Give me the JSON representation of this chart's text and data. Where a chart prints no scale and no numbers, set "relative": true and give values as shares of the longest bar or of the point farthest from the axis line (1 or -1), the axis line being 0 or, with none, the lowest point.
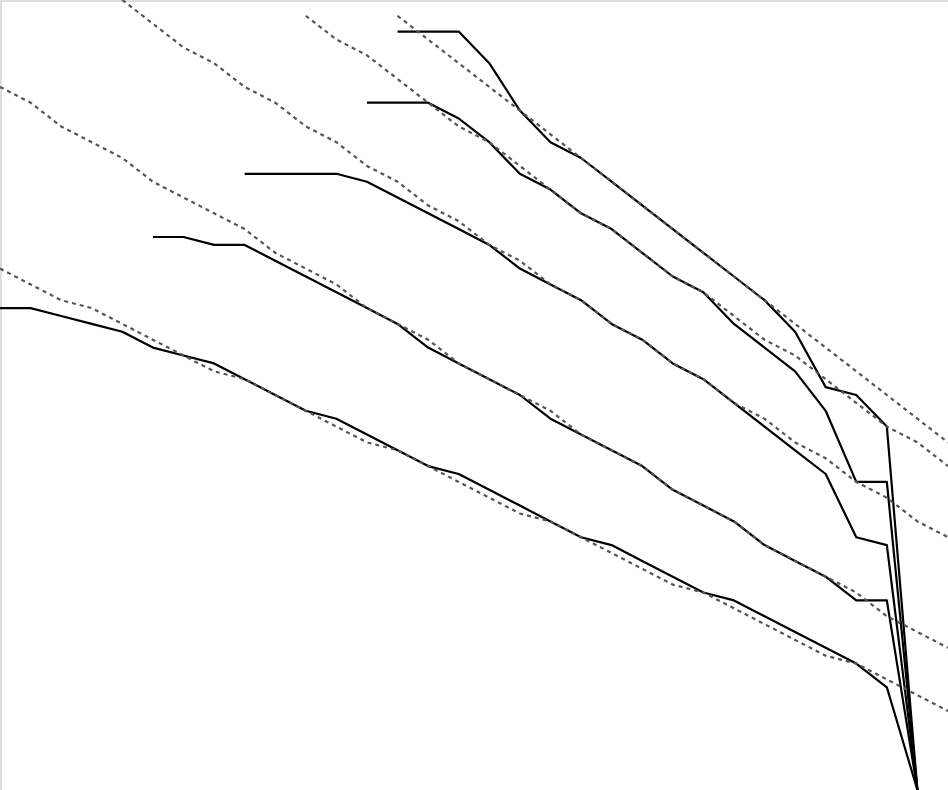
{
  "chart_data": {
    "type": "line",
    "relative": true,
    "categories": [
      null,
      null,
      null,
      null,
      null,
      null,
      null,
      null,
      null,
      null,
      null,
      null,
      null,
      null,
      null,
      null,
      null,
      null,
      null,
      null,
      null,
      null,
      null,
      null,
      null,
      null,
      null,
      null,
      null,
      null,
      null,
      null
    ],
    "series": [
      {
        "color": "#000000",
        "line_style": "solid",
        "values": [
          0.61,
          0.61,
          0.6,
          0.59,
          0.58,
          0.56,
          0.55,
          0.54,
          0.52,
          0.5,
          0.48,
          0.47,
          0.45,
          0.43,
          0.41,
          0.4,
          0.38,
          0.36,
          0.34,
          0.32,
          0.31,
          0.29,
          0.27,
          0.25,
          0.24,
          0.22,
          0.2,
          0.18,
          0.16,
          0.13,
          0,
          null
        ]
      },
      {
        "color": "#000000",
        "line_style": "solid",
        "values": [
          null,
          null,
          null,
          null,
          null,
          0.7,
          0.7,
          0.69,
          0.69,
          0.67,
          0.65,
          0.63,
          0.61,
          0.59,
          0.56,
          0.54,
          0.52,
          0.5,
          0.47,
          0.45,
          0.43,
          0.41,
          0.38,
          0.36,
          0.34,
          0.31,
          0.29,
          0.27,
          0.24,
          0.24,
          0,
          null
        ]
      },
      {
        "color": "#000000",
        "line_style": "solid",
        "values": [
          null,
          null,
          null,
          null,
          null,
          null,
          null,
          null,
          0.78,
          0.78,
          0.78,
          0.78,
          0.77,
          0.75,
          0.73,
          0.71,
          0.69,
          0.66,
          0.64,
          0.62,
          0.59,
          0.57,
          0.54,
          0.52,
          0.49,
          0.46,
          0.43,
          0.4,
          0.32,
          0.31,
          0,
          null
        ]
      },
      {
        "color": "#000000",
        "line_style": "solid",
        "values": [
          null,
          null,
          null,
          null,
          null,
          null,
          null,
          null,
          null,
          null,
          null,
          null,
          0.87,
          0.87,
          0.87,
          0.85,
          0.82,
          0.78,
          0.76,
          0.73,
          0.71,
          0.68,
          0.65,
          0.63,
          0.59,
          0.56,
          0.53,
          0.48,
          0.39,
          0.39,
          0,
          null
        ]
      },
      {
        "color": "#000000",
        "line_style": "solid",
        "values": [
          null,
          null,
          null,
          null,
          null,
          null,
          null,
          null,
          null,
          null,
          null,
          null,
          null,
          0.96,
          0.96,
          0.96,
          0.92,
          0.86,
          0.82,
          0.8,
          0.77,
          0.74,
          0.71,
          0.68,
          0.65,
          0.62,
          0.58,
          0.51,
          0.5,
          0.46,
          0,
          null
        ]
      },
      {
        "color": "#555555",
        "line_style": "dotted",
        "values": [
          0.66,
          0.64,
          0.62,
          0.61,
          0.59,
          0.57,
          0.55,
          0.53,
          0.52,
          0.5,
          0.48,
          0.46,
          0.44,
          0.43,
          0.41,
          0.39,
          0.37,
          0.35,
          0.34,
          0.32,
          0.3,
          0.28,
          0.26,
          0.25,
          0.23,
          0.21,
          0.19,
          0.17,
          0.16,
          0.14,
          0.12,
          0.1
        ]
      },
      {
        "color": "#555555",
        "line_style": "dotted",
        "values": [
          0.89,
          0.87,
          0.84,
          0.82,
          0.8,
          0.77,
          0.75,
          0.73,
          0.71,
          0.68,
          0.66,
          0.64,
          0.61,
          0.59,
          0.57,
          0.54,
          0.52,
          0.5,
          0.48,
          0.45,
          0.43,
          0.41,
          0.38,
          0.36,
          0.34,
          0.31,
          0.29,
          0.27,
          0.25,
          0.22,
          0.2,
          0.18
        ]
      },
      {
        "color": "#555555",
        "line_style": "dotted",
        "values": [
          null,
          null,
          null,
          null,
          1,
          0.97,
          0.94,
          0.92,
          0.89,
          0.87,
          0.84,
          0.82,
          0.79,
          0.77,
          0.74,
          0.72,
          0.69,
          0.67,
          0.64,
          0.62,
          0.59,
          0.57,
          0.54,
          0.52,
          0.49,
          0.47,
          0.44,
          0.42,
          0.39,
          0.37,
          0.34,
          0.32
        ]
      },
      {
        "color": "#555555",
        "line_style": "dotted",
        "values": [
          null,
          null,
          null,
          null,
          null,
          null,
          null,
          null,
          null,
          null,
          0.98,
          0.95,
          0.93,
          0.9,
          0.87,
          0.84,
          0.82,
          0.79,
          0.76,
          0.73,
          0.71,
          0.68,
          0.65,
          0.63,
          0.6,
          0.57,
          0.55,
          0.52,
          0.49,
          0.46,
          0.44,
          0.41
        ]
      },
      {
        "color": "#555555",
        "line_style": "dotted",
        "values": [
          null,
          null,
          null,
          null,
          null,
          null,
          null,
          null,
          null,
          null,
          null,
          null,
          null,
          0.98,
          0.95,
          0.92,
          0.89,
          0.86,
          0.83,
          0.8,
          0.77,
          0.74,
          0.71,
          0.68,
          0.65,
          0.62,
          0.59,
          0.56,
          0.53,
          0.5,
          0.47,
          0.44
        ]
      }
    ]
  }
}
